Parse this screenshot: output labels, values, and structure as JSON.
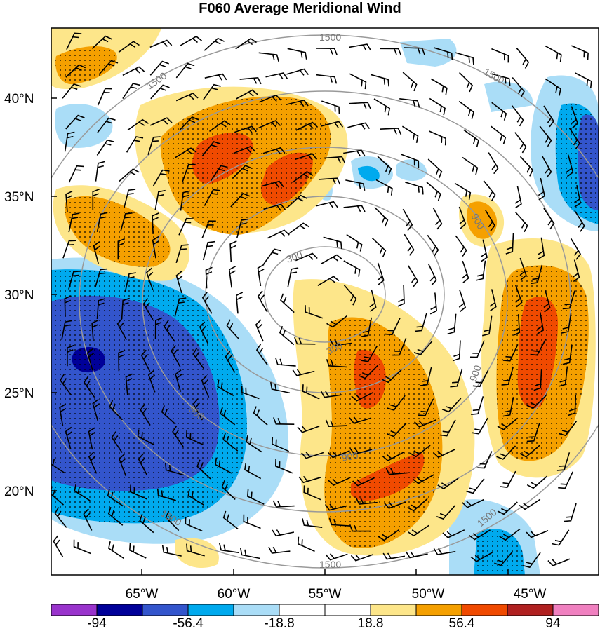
{
  "title": "F060 Average Meridional Wind",
  "lat_ticks": [
    "40°N",
    "35°N",
    "30°N",
    "25°N",
    "20°N"
  ],
  "lon_ticks": [
    "65°W",
    "60°W",
    "55°W",
    "50°W",
    "45°W"
  ],
  "contour_labels": {
    "c300": "300",
    "c900": "900",
    "c1500": "1500"
  },
  "colorbar": {
    "colors": [
      "#9933cc",
      "#000099",
      "#3355cc",
      "#00aaee",
      "#aaddf7",
      "#ffffff",
      "#ffffff",
      "#fde68a",
      "#f5a000",
      "#f04a00",
      "#b02020",
      "#f080c0"
    ],
    "labels": [
      "-94",
      "-56.4",
      "-18.8",
      "18.8",
      "56.4",
      "94"
    ]
  }
}
